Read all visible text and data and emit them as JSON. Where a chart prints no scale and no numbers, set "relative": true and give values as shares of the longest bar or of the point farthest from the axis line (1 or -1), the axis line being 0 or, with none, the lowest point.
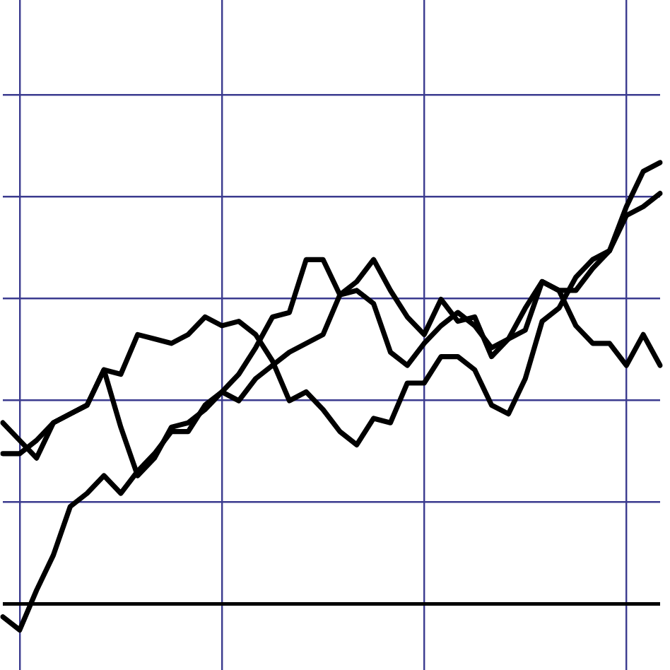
{
  "chart_data": {
    "type": "line",
    "relative": true,
    "grid": true,
    "legend": false,
    "tick_labels": false,
    "marker": "none",
    "line_style": "solid",
    "categories": [
      null,
      null,
      null,
      null,
      null,
      null,
      null,
      null,
      null,
      null,
      null,
      null,
      null,
      null,
      null,
      null,
      null,
      null,
      null,
      null,
      null,
      null,
      null,
      null,
      null,
      null,
      null,
      null,
      null,
      null,
      null,
      null,
      null,
      null,
      null,
      null,
      null,
      null,
      null,
      null
    ],
    "series": [
      {
        "color": "#000000",
        "values": [
          -0.03,
          -0.06,
          0.03,
          0.11,
          0.22,
          0.25,
          0.29,
          0.25,
          0.3,
          0.34,
          0.39,
          0.39,
          0.45,
          0.48,
          0.46,
          0.51,
          0.54,
          0.57,
          0.59,
          0.61,
          0.7,
          0.73,
          0.78,
          0.71,
          0.65,
          0.61,
          0.69,
          0.64,
          0.65,
          0.56,
          0.6,
          0.62,
          0.73,
          0.71,
          0.63,
          0.59,
          0.59,
          0.54,
          0.61,
          0.54
        ]
      },
      {
        "color": "#000000",
        "values": [
          0.41,
          0.37,
          0.33,
          0.41,
          0.43,
          0.45,
          0.53,
          0.52,
          0.61,
          0.6,
          0.59,
          0.61,
          0.65,
          0.63,
          0.64,
          0.61,
          0.55,
          0.46,
          0.48,
          0.44,
          0.39,
          0.36,
          0.42,
          0.41,
          0.5,
          0.5,
          0.56,
          0.56,
          0.53,
          0.45,
          0.43,
          0.51,
          0.64,
          0.67,
          0.74,
          0.78,
          0.8,
          0.88,
          0.9,
          0.93
        ]
      },
      {
        "color": "#000000",
        "values": [
          0.34,
          0.34,
          0.37,
          0.41,
          0.43,
          0.45,
          0.53,
          0.4,
          0.29,
          0.33,
          0.4,
          0.41,
          0.44,
          0.48,
          0.52,
          0.58,
          0.65,
          0.66,
          0.78,
          0.78,
          0.7,
          0.71,
          0.68,
          0.57,
          0.54,
          0.59,
          0.63,
          0.66,
          0.63,
          0.58,
          0.6,
          0.67,
          0.73,
          0.71,
          0.71,
          0.76,
          0.8,
          0.9,
          0.98,
          1
        ]
      }
    ]
  }
}
